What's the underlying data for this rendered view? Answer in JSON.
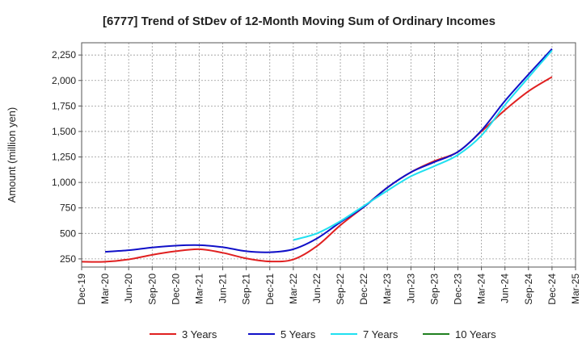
{
  "chart_data": {
    "type": "line",
    "title": "[6777]  Trend of StDev of 12-Month Moving Sum of Ordinary Incomes",
    "xlabel": "",
    "ylabel": "Amount (million yen)",
    "ylim": [
      170,
      2370
    ],
    "yticks": [
      250,
      500,
      750,
      1000,
      1250,
      1500,
      1750,
      2000,
      2250
    ],
    "ytick_labels": [
      "250",
      "500",
      "750",
      "1,000",
      "1,250",
      "1,500",
      "1,750",
      "2,000",
      "2,250"
    ],
    "categories": [
      "Dec-19",
      "Mar-20",
      "Jun-20",
      "Sep-20",
      "Dec-20",
      "Mar-21",
      "Jun-21",
      "Sep-21",
      "Dec-21",
      "Mar-22",
      "Jun-22",
      "Sep-22",
      "Dec-22",
      "Mar-23",
      "Jun-23",
      "Sep-23",
      "Dec-23",
      "Mar-24",
      "Jun-24",
      "Sep-24",
      "Dec-24",
      "Mar-25"
    ],
    "series": [
      {
        "name": "3 Years",
        "color": "#e02020",
        "x": [
          "Dec-19",
          "Mar-20",
          "Jun-20",
          "Sep-20",
          "Dec-20",
          "Mar-21",
          "Jun-21",
          "Sep-21",
          "Dec-21",
          "Mar-22",
          "Jun-22",
          "Sep-22",
          "Dec-22",
          "Mar-23",
          "Jun-23",
          "Sep-23",
          "Dec-23",
          "Mar-24",
          "Jun-24",
          "Sep-24",
          "Dec-24"
        ],
        "values": [
          222,
          222,
          245,
          290,
          325,
          345,
          310,
          255,
          225,
          245,
          375,
          580,
          760,
          950,
          1100,
          1210,
          1300,
          1500,
          1710,
          1895,
          2035
        ]
      },
      {
        "name": "5 Years",
        "color": "#1010c8",
        "x": [
          "Mar-20",
          "Jun-20",
          "Sep-20",
          "Dec-20",
          "Mar-21",
          "Jun-21",
          "Sep-21",
          "Dec-21",
          "Mar-22",
          "Jun-22",
          "Sep-22",
          "Dec-22",
          "Mar-23",
          "Jun-23",
          "Sep-23",
          "Dec-23",
          "Mar-24",
          "Jun-24",
          "Sep-24",
          "Dec-24"
        ],
        "values": [
          320,
          335,
          362,
          380,
          385,
          365,
          325,
          315,
          345,
          450,
          610,
          760,
          950,
          1100,
          1200,
          1300,
          1510,
          1800,
          2060,
          2310
        ]
      },
      {
        "name": "7 Years",
        "color": "#20e0f0",
        "x": [
          "Mar-22",
          "Jun-22",
          "Sep-22",
          "Dec-22",
          "Mar-23",
          "Jun-23",
          "Sep-23",
          "Dec-23",
          "Mar-24",
          "Jun-24",
          "Sep-24",
          "Dec-24"
        ],
        "values": [
          435,
          500,
          620,
          770,
          920,
          1060,
          1160,
          1270,
          1460,
          1760,
          2030,
          2295
        ]
      },
      {
        "name": "10 Years",
        "color": "#208020",
        "x": [],
        "values": []
      }
    ]
  }
}
